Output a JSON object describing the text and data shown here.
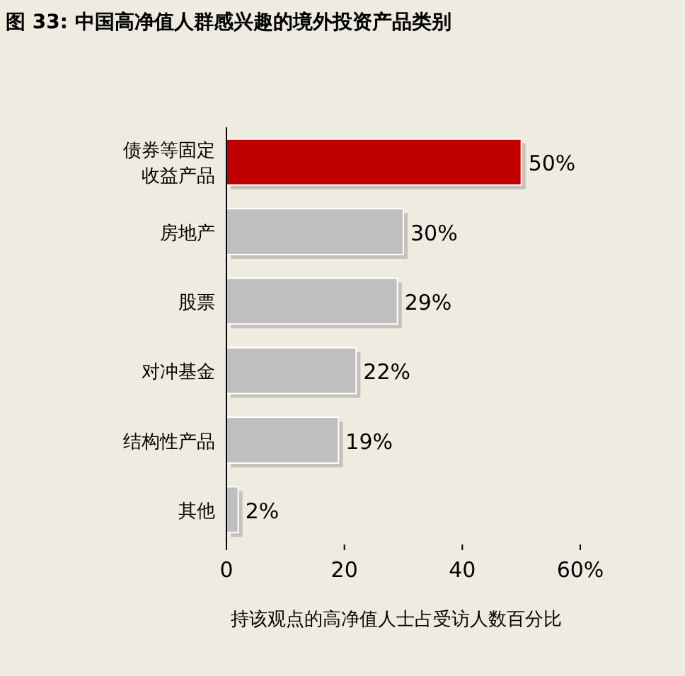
{
  "chart_data": {
    "type": "bar",
    "orientation": "horizontal",
    "title": "图 33:   中国高净值人群感兴趣的境外投资产品类别",
    "xlabel": "持该观点的高净值人士占受访人数百分比",
    "categories": [
      "债券等固定收益产品",
      "房地产",
      "股票",
      "对冲基金",
      "结构性产品",
      "其他"
    ],
    "values": [
      50,
      30,
      29,
      22,
      19,
      2
    ],
    "colors": [
      "#c00000",
      "#bfbfbf",
      "#bfbfbf",
      "#bfbfbf",
      "#bfbfbf",
      "#bfbfbf"
    ],
    "value_labels": [
      "50%",
      "30%",
      "29%",
      "22%",
      "19%",
      "2%"
    ],
    "xlim": [
      0,
      60
    ],
    "xticks": [
      0,
      20,
      40,
      {
        "value": 60,
        "label": "60%"
      }
    ],
    "grid": false
  }
}
